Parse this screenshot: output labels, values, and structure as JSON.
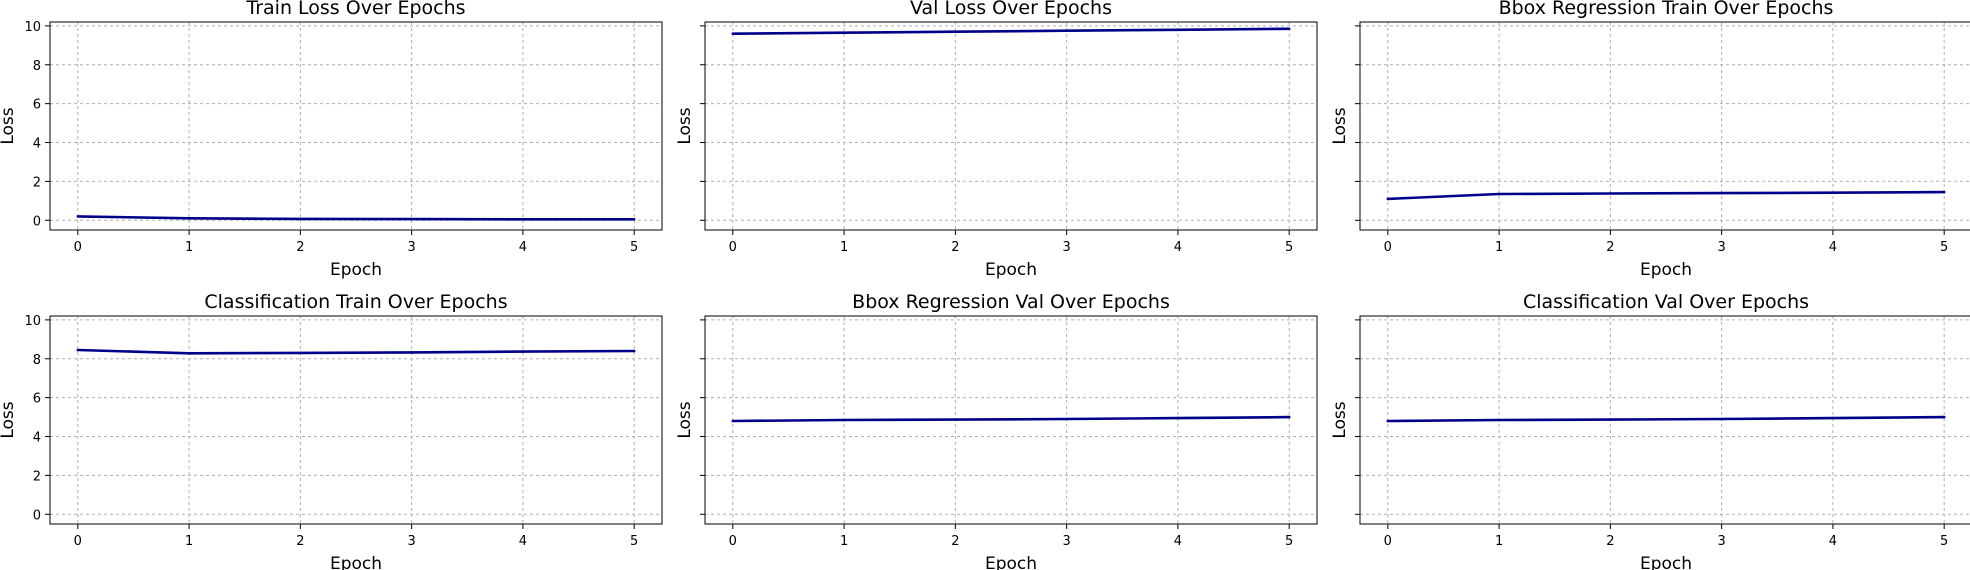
{
  "figure": {
    "line_color": "#00008b",
    "grid_color": "#b0b0b0",
    "grid": true,
    "shared_y": true
  },
  "chart_data": [
    {
      "type": "line",
      "title": "Train Loss Over Epochs",
      "xlabel": "Epoch",
      "ylabel": "Loss",
      "x": [
        0,
        1,
        2,
        3,
        4,
        5
      ],
      "xticks": [
        "0",
        "1",
        "2",
        "3",
        "4",
        "5"
      ],
      "yticks": [
        "0",
        "2",
        "4",
        "6",
        "8",
        "10"
      ],
      "show_yticklabels": true,
      "ylim": [
        -0.5,
        10.2
      ],
      "series": [
        {
          "values": [
            0.2,
            0.1,
            0.07,
            0.06,
            0.05,
            0.05
          ]
        }
      ]
    },
    {
      "type": "line",
      "title": "Val Loss Over Epochs",
      "xlabel": "Epoch",
      "ylabel": "Loss",
      "x": [
        0,
        1,
        2,
        3,
        4,
        5
      ],
      "xticks": [
        "0",
        "1",
        "2",
        "3",
        "4",
        "5"
      ],
      "yticks": [
        "0",
        "2",
        "4",
        "6",
        "8",
        "10"
      ],
      "show_yticklabels": false,
      "ylim": [
        -0.5,
        10.2
      ],
      "series": [
        {
          "values": [
            9.6,
            9.65,
            9.7,
            9.75,
            9.8,
            9.85
          ]
        }
      ]
    },
    {
      "type": "line",
      "title": "Bbox Regression Train Over Epochs",
      "xlabel": "Epoch",
      "ylabel": "Loss",
      "x": [
        0,
        1,
        2,
        3,
        4,
        5
      ],
      "xticks": [
        "0",
        "1",
        "2",
        "3",
        "4",
        "5"
      ],
      "yticks": [
        "0",
        "2",
        "4",
        "6",
        "8",
        "10"
      ],
      "show_yticklabels": false,
      "ylim": [
        -0.5,
        10.2
      ],
      "series": [
        {
          "values": [
            1.1,
            1.35,
            1.38,
            1.4,
            1.42,
            1.45
          ]
        }
      ]
    },
    {
      "type": "line",
      "title": "Classification Train Over Epochs",
      "xlabel": "Epoch",
      "ylabel": "Loss",
      "x": [
        0,
        1,
        2,
        3,
        4,
        5
      ],
      "xticks": [
        "0",
        "1",
        "2",
        "3",
        "4",
        "5"
      ],
      "yticks": [
        "0",
        "2",
        "4",
        "6",
        "8",
        "10"
      ],
      "show_yticklabels": true,
      "ylim": [
        -0.5,
        10.2
      ],
      "series": [
        {
          "values": [
            8.45,
            8.28,
            8.3,
            8.33,
            8.37,
            8.4
          ]
        }
      ]
    },
    {
      "type": "line",
      "title": "Bbox Regression Val Over Epochs",
      "xlabel": "Epoch",
      "ylabel": "Loss",
      "x": [
        0,
        1,
        2,
        3,
        4,
        5
      ],
      "xticks": [
        "0",
        "1",
        "2",
        "3",
        "4",
        "5"
      ],
      "yticks": [
        "0",
        "2",
        "4",
        "6",
        "8",
        "10"
      ],
      "show_yticklabels": false,
      "ylim": [
        -0.5,
        10.2
      ],
      "series": [
        {
          "values": [
            4.8,
            4.85,
            4.87,
            4.9,
            4.95,
            5.0
          ]
        }
      ]
    },
    {
      "type": "line",
      "title": "Classification Val Over Epochs",
      "xlabel": "Epoch",
      "ylabel": "Loss",
      "x": [
        0,
        1,
        2,
        3,
        4,
        5
      ],
      "xticks": [
        "0",
        "1",
        "2",
        "3",
        "4",
        "5"
      ],
      "yticks": [
        "0",
        "2",
        "4",
        "6",
        "8",
        "10"
      ],
      "show_yticklabels": false,
      "ylim": [
        -0.5,
        10.2
      ],
      "series": [
        {
          "values": [
            4.8,
            4.85,
            4.87,
            4.9,
            4.95,
            5.0
          ]
        }
      ]
    }
  ]
}
